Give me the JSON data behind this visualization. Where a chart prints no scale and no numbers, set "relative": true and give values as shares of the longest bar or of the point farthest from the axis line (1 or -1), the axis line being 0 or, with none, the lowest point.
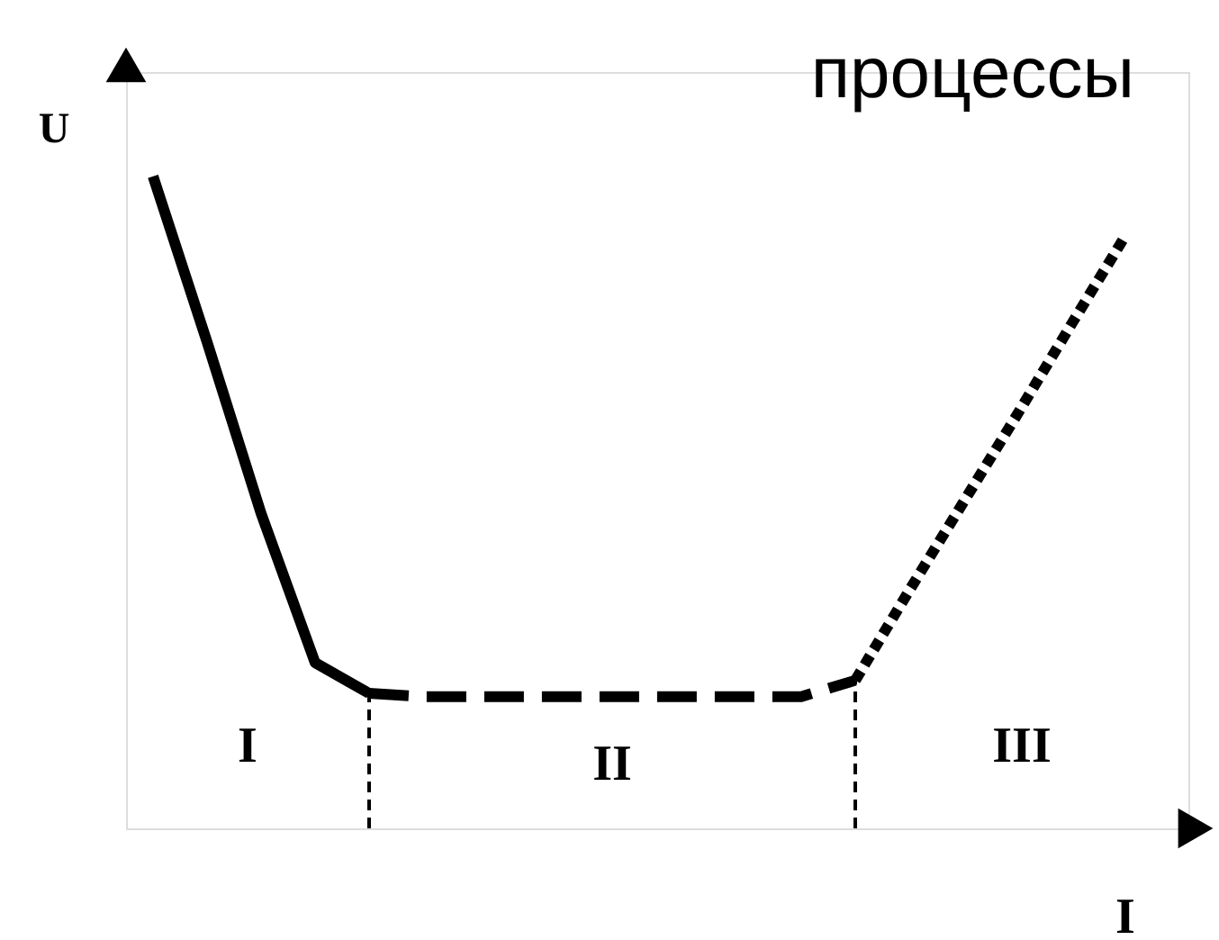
{
  "chart_data": {
    "type": "line",
    "relative": true,
    "title": "процессы",
    "xlabel": "I",
    "ylabel": "U",
    "grid": false,
    "categories": [
      null,
      null,
      null,
      null,
      null,
      null,
      null,
      null,
      null,
      null,
      null,
      null,
      null,
      null,
      null,
      null,
      null,
      null,
      null
    ],
    "series": [
      {
        "color": "#000000",
        "line_style": "solid",
        "values": [
          1.0,
          0.746,
          0.483,
          0.254,
          0.207,
          null,
          null,
          null,
          null,
          null,
          null,
          null,
          null,
          null,
          null,
          null,
          null,
          null,
          null
        ]
      },
      {
        "color": "#000000",
        "line_style": "dashed",
        "values": [
          null,
          null,
          null,
          null,
          0.207,
          0.202,
          0.202,
          0.202,
          0.202,
          0.202,
          0.202,
          0.202,
          0.202,
          0.227,
          null,
          null,
          null,
          null,
          null
        ]
      },
      {
        "color": "#000000",
        "line_style": "dotted",
        "values": [
          null,
          null,
          null,
          null,
          null,
          null,
          null,
          null,
          null,
          null,
          null,
          null,
          null,
          0.227,
          0.365,
          0.5,
          0.635,
          0.773,
          0.909
        ]
      }
    ],
    "annotations": [
      "I",
      "II",
      "III"
    ]
  }
}
